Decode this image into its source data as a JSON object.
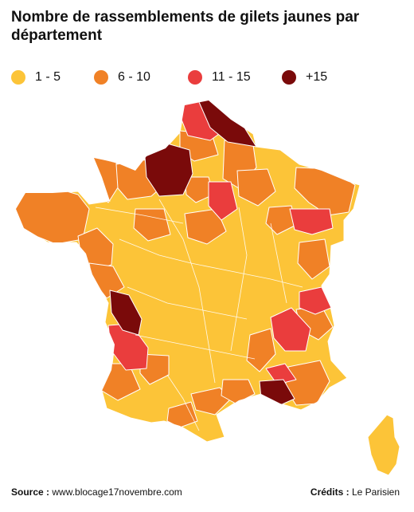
{
  "title": "Nombre de rassemblements de gilets jaunes par département",
  "legend": [
    {
      "label": "1 - 5",
      "color": "#fcc438"
    },
    {
      "label": "6 - 10",
      "color": "#f08126"
    },
    {
      "label": "11 - 15",
      "color": "#ea3d3d"
    },
    {
      "label": "+15",
      "color": "#7a0a0a"
    }
  ],
  "footer": {
    "source_label": "Source :",
    "source_value": "www.blocage17novembre.com",
    "credits_label": "Crédits :",
    "credits_value": "Le Parisien"
  }
}
